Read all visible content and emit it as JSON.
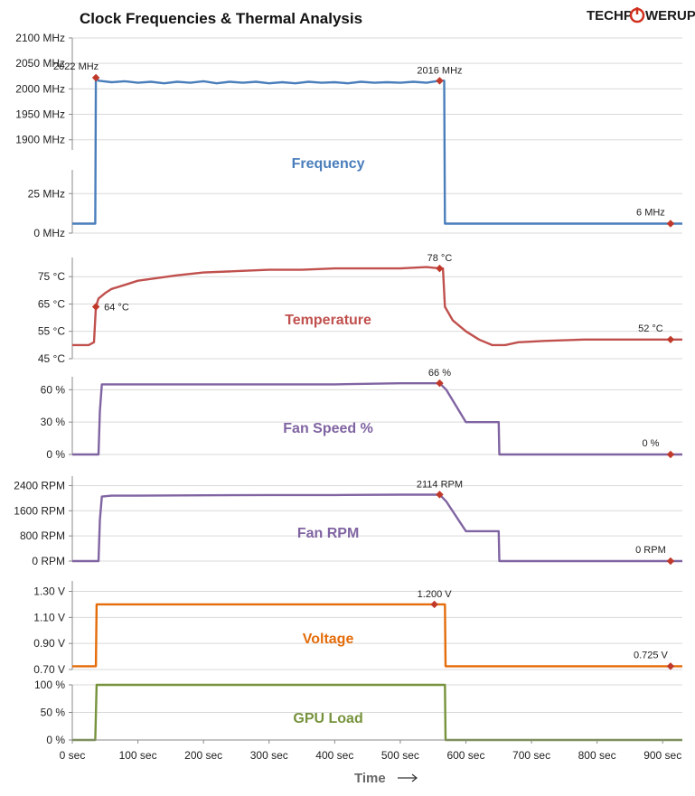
{
  "chart_data": {
    "type": "line",
    "title": "Clock Frequencies & Thermal Analysis",
    "brand": {
      "prefix": "TECHP",
      "suffix": "WERUP",
      "accent": "#d0311f"
    },
    "xlabel": "Time",
    "xlim": [
      0,
      930
    ],
    "x_ticks": [
      0,
      100,
      200,
      300,
      400,
      500,
      600,
      700,
      800,
      900
    ],
    "x_tick_labels": [
      "0 sec",
      "100 sec",
      "200 sec",
      "300 sec",
      "400 sec",
      "500 sec",
      "600 sec",
      "700 sec",
      "800 sec",
      "900 sec"
    ],
    "marker_color": "#c0392b",
    "panels": [
      {
        "key": "frequency",
        "name": "Frequency",
        "color": "#4a7ebb",
        "split": true,
        "upper": {
          "ylim": [
            1880,
            2100
          ],
          "ticks": [
            1900,
            1950,
            2000,
            2050,
            2100
          ],
          "tick_labels": [
            "1900 MHz",
            "1950 MHz",
            "2000 MHz",
            "2050 MHz",
            "2100 MHz"
          ]
        },
        "lower": {
          "ylim": [
            0,
            40
          ],
          "ticks": [
            0,
            25
          ],
          "tick_labels": [
            "0 MHz",
            "25 MHz"
          ]
        },
        "series": [
          [
            0,
            6
          ],
          [
            35,
            6
          ],
          [
            36,
            2022
          ],
          [
            40,
            2016
          ],
          [
            60,
            2013
          ],
          [
            80,
            2015
          ],
          [
            100,
            2012
          ],
          [
            120,
            2014
          ],
          [
            140,
            2011
          ],
          [
            160,
            2014
          ],
          [
            180,
            2012
          ],
          [
            200,
            2015
          ],
          [
            220,
            2011
          ],
          [
            240,
            2014
          ],
          [
            260,
            2012
          ],
          [
            280,
            2014
          ],
          [
            300,
            2011
          ],
          [
            320,
            2013
          ],
          [
            340,
            2011
          ],
          [
            360,
            2014
          ],
          [
            380,
            2012
          ],
          [
            400,
            2013
          ],
          [
            420,
            2011
          ],
          [
            440,
            2014
          ],
          [
            460,
            2012
          ],
          [
            480,
            2013
          ],
          [
            500,
            2012
          ],
          [
            520,
            2014
          ],
          [
            540,
            2012
          ],
          [
            560,
            2016
          ],
          [
            567,
            2016
          ],
          [
            568,
            6
          ],
          [
            930,
            6
          ]
        ],
        "annotations": [
          {
            "x": 36,
            "y": 2022,
            "label": "2022 MHz",
            "pos": "above-left"
          },
          {
            "x": 560,
            "y": 2016,
            "label": "2016 MHz",
            "pos": "above"
          },
          {
            "x": 912,
            "y": 6,
            "label": "6 MHz",
            "pos": "above-left"
          }
        ]
      },
      {
        "key": "temperature",
        "name": "Temperature",
        "color": "#c0504d",
        "ylim": [
          45,
          82
        ],
        "ticks": [
          45,
          55,
          65,
          75
        ],
        "tick_labels": [
          "45 °C",
          "55 °C",
          "65 °C",
          "75 °C"
        ],
        "series": [
          [
            0,
            50
          ],
          [
            25,
            50
          ],
          [
            33,
            51
          ],
          [
            36,
            64
          ],
          [
            40,
            67
          ],
          [
            50,
            69
          ],
          [
            60,
            70.5
          ],
          [
            80,
            72
          ],
          [
            100,
            73.5
          ],
          [
            130,
            74.5
          ],
          [
            160,
            75.5
          ],
          [
            200,
            76.5
          ],
          [
            250,
            77
          ],
          [
            300,
            77.5
          ],
          [
            350,
            77.5
          ],
          [
            400,
            78
          ],
          [
            450,
            78
          ],
          [
            500,
            78
          ],
          [
            540,
            78.5
          ],
          [
            560,
            78
          ],
          [
            565,
            78
          ],
          [
            568,
            64
          ],
          [
            580,
            59
          ],
          [
            600,
            55
          ],
          [
            620,
            52
          ],
          [
            640,
            50
          ],
          [
            660,
            50
          ],
          [
            680,
            51
          ],
          [
            720,
            51.5
          ],
          [
            780,
            52
          ],
          [
            850,
            52
          ],
          [
            930,
            52
          ]
        ],
        "annotations": [
          {
            "x": 36,
            "y": 64,
            "label": "64 °C",
            "pos": "right"
          },
          {
            "x": 560,
            "y": 78,
            "label": "78 °C",
            "pos": "above"
          },
          {
            "x": 912,
            "y": 52,
            "label": "52 °C",
            "pos": "above-left"
          }
        ]
      },
      {
        "key": "fan_speed",
        "name": "Fan Speed %",
        "color": "#8064a2",
        "ylim": [
          0,
          72
        ],
        "ticks": [
          0,
          30,
          60
        ],
        "tick_labels": [
          "0 %",
          "30 %",
          "60 %"
        ],
        "series": [
          [
            0,
            0
          ],
          [
            40,
            0
          ],
          [
            42,
            40
          ],
          [
            45,
            65
          ],
          [
            60,
            65
          ],
          [
            100,
            65
          ],
          [
            200,
            65
          ],
          [
            300,
            65
          ],
          [
            400,
            65
          ],
          [
            500,
            66
          ],
          [
            560,
            66
          ],
          [
            570,
            60
          ],
          [
            600,
            30
          ],
          [
            650,
            30
          ],
          [
            651,
            0
          ],
          [
            930,
            0
          ]
        ],
        "annotations": [
          {
            "x": 560,
            "y": 66,
            "label": "66 %",
            "pos": "above"
          },
          {
            "x": 912,
            "y": 0,
            "label": "0 %",
            "pos": "above-left"
          }
        ]
      },
      {
        "key": "fan_rpm",
        "name": "Fan RPM",
        "color": "#8064a2",
        "ylim": [
          0,
          2700
        ],
        "ticks": [
          0,
          800,
          1600,
          2400
        ],
        "tick_labels": [
          "0 RPM",
          "800 RPM",
          "1600 RPM",
          "2400 RPM"
        ],
        "series": [
          [
            0,
            0
          ],
          [
            40,
            0
          ],
          [
            42,
            1300
          ],
          [
            45,
            2050
          ],
          [
            60,
            2080
          ],
          [
            100,
            2080
          ],
          [
            200,
            2090
          ],
          [
            300,
            2100
          ],
          [
            400,
            2100
          ],
          [
            500,
            2110
          ],
          [
            560,
            2114
          ],
          [
            570,
            1900
          ],
          [
            600,
            950
          ],
          [
            650,
            950
          ],
          [
            651,
            0
          ],
          [
            930,
            0
          ]
        ],
        "annotations": [
          {
            "x": 560,
            "y": 2114,
            "label": "2114 RPM",
            "pos": "above"
          },
          {
            "x": 912,
            "y": 0,
            "label": "0 RPM",
            "pos": "above-left"
          }
        ]
      },
      {
        "key": "voltage",
        "name": "Voltage",
        "color": "#e46c0a",
        "ylim": [
          0.7,
          1.38
        ],
        "ticks": [
          0.7,
          0.9,
          1.1,
          1.3
        ],
        "tick_labels": [
          "0.70 V",
          "0.90 V",
          "1.10 V",
          "1.30 V"
        ],
        "series": [
          [
            0,
            0.725
          ],
          [
            36,
            0.725
          ],
          [
            37,
            1.2
          ],
          [
            568,
            1.2
          ],
          [
            569,
            0.725
          ],
          [
            930,
            0.725
          ]
        ],
        "annotations": [
          {
            "x": 552,
            "y": 1.2,
            "label": "1.200 V",
            "pos": "above"
          },
          {
            "x": 912,
            "y": 0.725,
            "label": "0.725 V",
            "pos": "above-left"
          }
        ]
      },
      {
        "key": "gpu_load",
        "name": "GPU Load",
        "color": "#77933c",
        "ylim": [
          0,
          100
        ],
        "ticks": [
          0,
          50,
          100
        ],
        "tick_labels": [
          "0 %",
          "50 %",
          "100 %"
        ],
        "series": [
          [
            0,
            0
          ],
          [
            35,
            0
          ],
          [
            37,
            100
          ],
          [
            568,
            100
          ],
          [
            569,
            0
          ],
          [
            930,
            0
          ]
        ],
        "annotations": []
      }
    ]
  }
}
